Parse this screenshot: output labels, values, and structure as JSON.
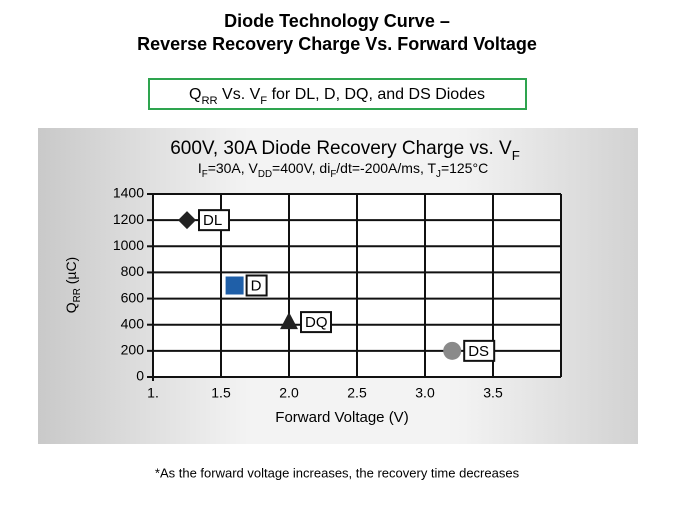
{
  "header": {
    "title_lines": [
      "Diode Technology Curve –",
      "Reverse Recovery Charge Vs. Forward Voltage"
    ]
  },
  "subtitle_box": [
    "Q",
    "RR",
    " Vs. V",
    "F",
    " for DL, D, DQ, and DS Diodes"
  ],
  "footnote": "*As the forward voltage increases, the recovery time decreases",
  "chart_data": {
    "type": "scatter",
    "title": [
      "600V, 30A Diode Recovery Charge vs. V",
      "F"
    ],
    "subtitle": [
      "I",
      "F",
      "=30A, V",
      "DD",
      "=400V, di",
      "F",
      "/dt=-200A/ms, T",
      "J",
      "=125°C"
    ],
    "x_label": "Forward Voltage (V)",
    "y_label": [
      "Q",
      "RR",
      " (µC)"
    ],
    "xlim": [
      1,
      4
    ],
    "ylim": [
      0,
      1400
    ],
    "xticks": [
      {
        "value": 1,
        "label": "1."
      },
      1.5,
      {
        "value": 2,
        "label": "2.0"
      },
      2.5,
      {
        "value": 3,
        "label": "3.0"
      },
      3.5
    ],
    "yticks": [
      0,
      200,
      400,
      600,
      800,
      1000,
      1200,
      1400
    ],
    "grid": true,
    "series": [
      {
        "name": "DL",
        "color": "#222222",
        "marker": "diamond",
        "x": [
          1.25
        ],
        "values": [
          1200
        ]
      },
      {
        "name": "D",
        "color": "#1f5fa8",
        "marker": "square",
        "x": [
          1.6
        ],
        "values": [
          700
        ]
      },
      {
        "name": "DQ",
        "color": "#222222",
        "marker": "triangle",
        "x": [
          2.0
        ],
        "values": [
          420
        ]
      },
      {
        "name": "DS",
        "color": "#8a8a8a",
        "marker": "circle",
        "x": [
          3.2
        ],
        "values": [
          200
        ]
      }
    ]
  }
}
